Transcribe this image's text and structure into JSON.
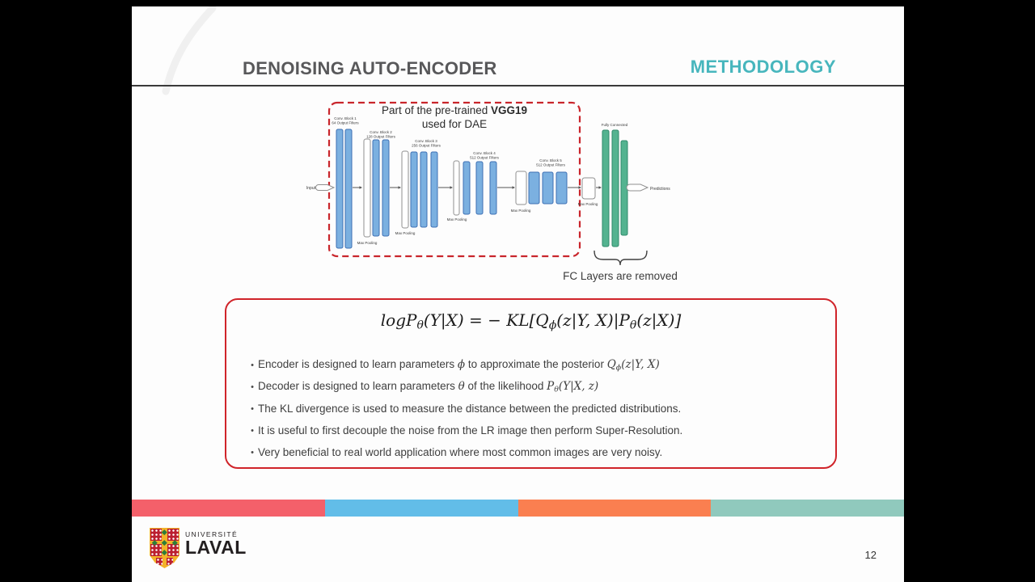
{
  "slide": {
    "title": "DENOISING AUTO-ENCODER",
    "section": "METHODOLOGY",
    "page_number": "12"
  },
  "diagram": {
    "input_label": "Input",
    "predictions_label": "Predictions",
    "box_title": {
      "prefix": "Part of the pre-trained ",
      "bold": "VGG19",
      "line2": "used for DAE"
    },
    "fully_connected_label": "Fully Connected",
    "max_pooling_label": "Max Pooling",
    "fc_removed_label": "FC Layers are removed",
    "blocks": [
      {
        "name": "Conv. Block 1",
        "filters": "64 Output Filters"
      },
      {
        "name": "Conv. Block 2",
        "filters": "128 Output Filters"
      },
      {
        "name": "Conv. Block 3",
        "filters": "256 Output Filters"
      },
      {
        "name": "Conv. Block 4",
        "filters": "512 Output Filters"
      },
      {
        "name": "Conv. Block 5",
        "filters": "512 Output Filters"
      }
    ]
  },
  "formula_box": {
    "formula": [
      {
        "t": "logP",
        "m": true
      },
      {
        "t": "θ",
        "m": true,
        "sub": true
      },
      {
        "t": "(Y|X) = − KL[Q",
        "m": true
      },
      {
        "t": "ϕ",
        "m": true,
        "sub": true
      },
      {
        "t": "(z|Y, X)|P",
        "m": true
      },
      {
        "t": "θ",
        "m": true,
        "sub": true
      },
      {
        "t": "(z|X)]",
        "m": true
      }
    ],
    "bullets": [
      [
        {
          "t": "Encoder is designed to learn parameters "
        },
        {
          "t": "ϕ",
          "m": true
        },
        {
          "t": " to approximate the posterior "
        },
        {
          "t": "Q",
          "m": true
        },
        {
          "t": "ϕ",
          "m": true,
          "sub": true
        },
        {
          "t": "(z|Y, X)",
          "m": true
        }
      ],
      [
        {
          "t": "Decoder is designed to learn parameters "
        },
        {
          "t": "θ",
          "m": true
        },
        {
          "t": " of the likelihood "
        },
        {
          "t": "P",
          "m": true
        },
        {
          "t": "θ",
          "m": true,
          "sub": true
        },
        {
          "t": "(Y|X, z)",
          "m": true
        }
      ],
      [
        {
          "t": "The KL divergence is used to measure the distance between the predicted distributions."
        }
      ],
      [
        {
          "t": "It is useful to first decouple the noise from the LR image then perform Super-Resolution."
        }
      ],
      [
        {
          "t": "Very beneficial to real world application where most common images are very noisy."
        }
      ]
    ]
  },
  "footer": {
    "logo": {
      "line1": "UNIVERSITÉ",
      "line2": "LAVAL"
    }
  },
  "colors": {
    "header_title": "#58585a",
    "section_teal": "#47b6bd",
    "red_box": "#d0242a",
    "dashed_red": "#c9262c",
    "conv_blue": "#7bb0e0",
    "conv_blue_border": "#3d6fb4",
    "fc_green": "#54b390",
    "fc_green_border": "#2f8a6b",
    "stripes": [
      "#f4606a",
      "#62bde8",
      "#fa7f50",
      "#90c9bd"
    ]
  }
}
